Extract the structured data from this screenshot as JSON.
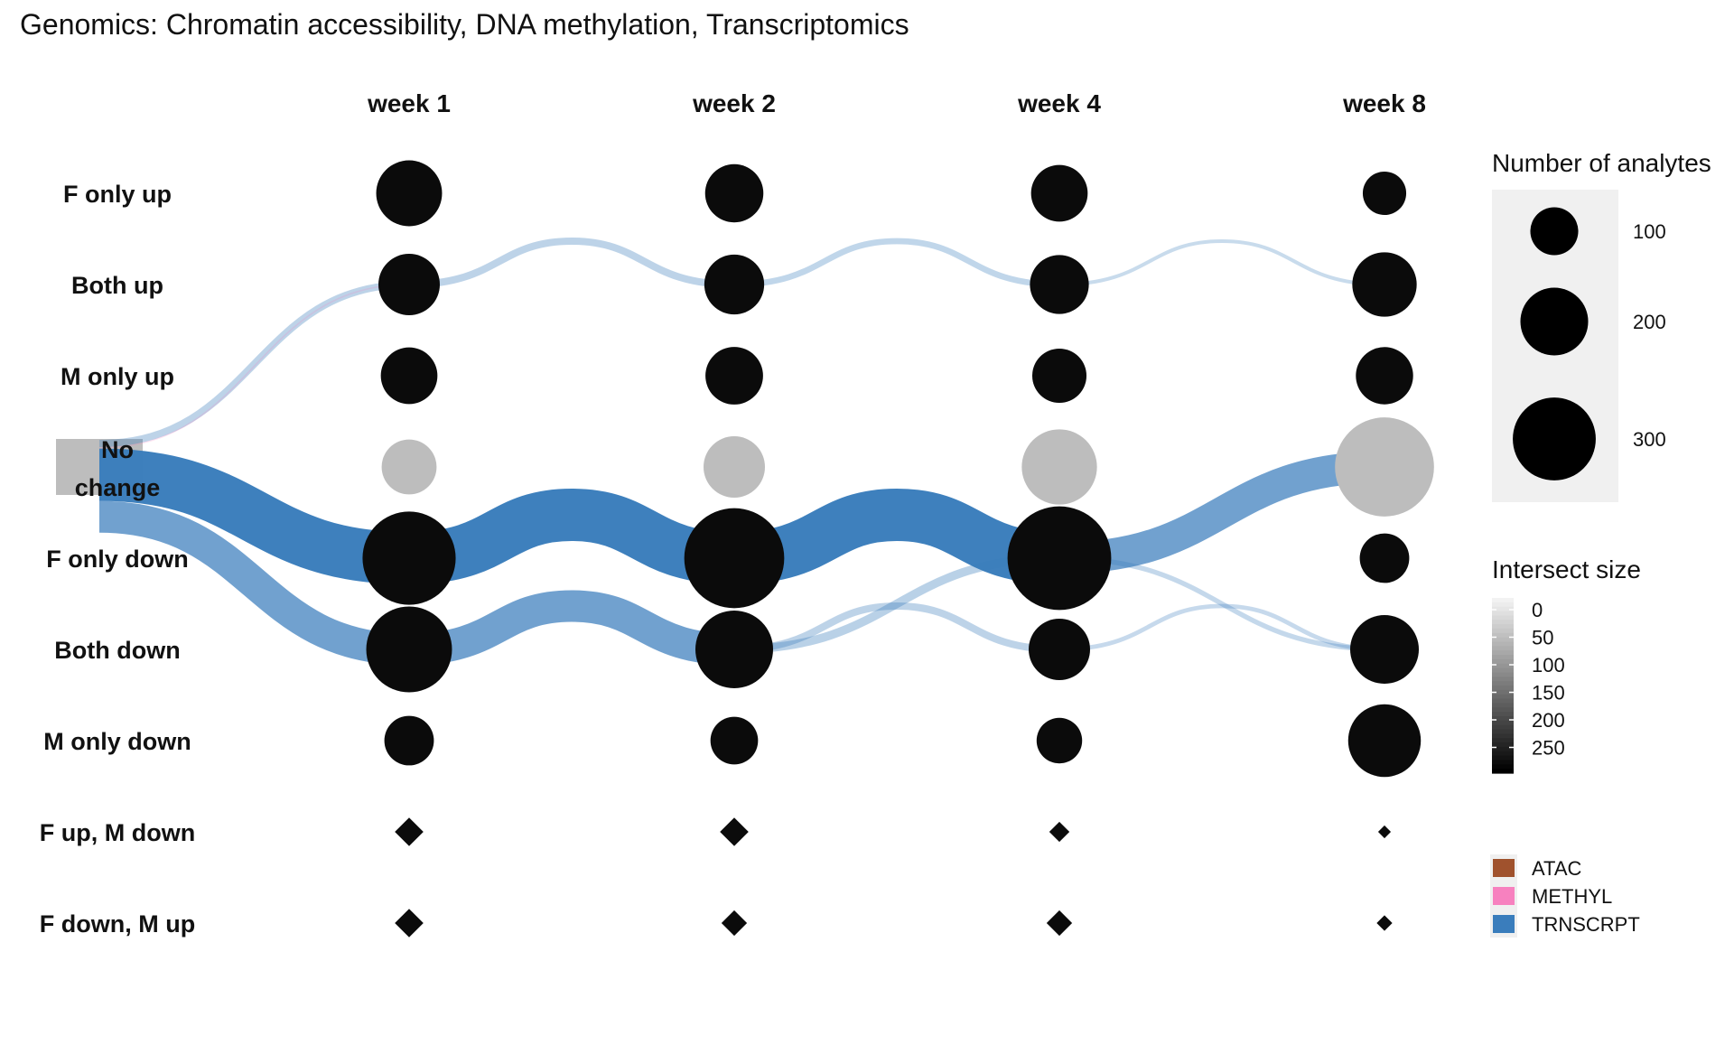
{
  "chart_data": {
    "type": "alluvial-dot",
    "title": "Genomics: Chromatin accessibility, DNA methylation, Transcriptomics",
    "timepoints": [
      "week 1",
      "week 2",
      "week 4",
      "week 8"
    ],
    "states": [
      "F only up",
      "Both up",
      "M only up",
      "No change",
      "F only down",
      "Both down",
      "M only down",
      "F up, M down",
      "F down, M up"
    ],
    "no_change_state": "No change",
    "diamond_states": [
      "F up, M down",
      "F down, M up"
    ],
    "node_sizes": {
      "F only up": [
        115,
        90,
        85,
        50
      ],
      "Both up": [
        100,
        95,
        92,
        110
      ],
      "M only up": [
        85,
        88,
        78,
        87
      ],
      "No change": [
        80,
        100,
        150,
        260
      ],
      "F only down": [
        230,
        265,
        285,
        65
      ],
      "Both down": [
        195,
        160,
        100,
        125
      ],
      "M only down": [
        65,
        60,
        55,
        140
      ],
      "F up, M down": [
        10,
        10,
        5,
        2
      ],
      "F down, M up": [
        10,
        8,
        8,
        3
      ]
    },
    "flows": [
      {
        "from_state": "No change",
        "to_state": "Both up",
        "from_time": 0,
        "to_time": 1,
        "value": 30,
        "modality": "TRNSCRPT"
      },
      {
        "from_state": "No change",
        "to_state": "Both up",
        "from_time": 0,
        "to_time": 1,
        "value": 1,
        "modality": "METHYL"
      },
      {
        "from_state": "No change",
        "to_state": "F only down",
        "from_time": 0,
        "to_time": 1,
        "value": 215,
        "modality": "TRNSCRPT"
      },
      {
        "from_state": "No change",
        "to_state": "Both down",
        "from_time": 0,
        "to_time": 1,
        "value": 130,
        "modality": "TRNSCRPT"
      },
      {
        "from_state": "Both up",
        "to_state": "Both up",
        "from_time": 1,
        "to_time": 2,
        "value": 30,
        "modality": "TRNSCRPT"
      },
      {
        "from_state": "Both up",
        "to_state": "Both up",
        "from_time": 2,
        "to_time": 3,
        "value": 25,
        "modality": "TRNSCRPT"
      },
      {
        "from_state": "Both up",
        "to_state": "Both up",
        "from_time": 3,
        "to_time": 4,
        "value": 15,
        "modality": "TRNSCRPT"
      },
      {
        "from_state": "F only down",
        "to_state": "F only down",
        "from_time": 1,
        "to_time": 2,
        "value": 215,
        "modality": "TRNSCRPT"
      },
      {
        "from_state": "F only down",
        "to_state": "F only down",
        "from_time": 2,
        "to_time": 3,
        "value": 215,
        "modality": "TRNSCRPT"
      },
      {
        "from_state": "F only down",
        "to_state": "No change",
        "from_time": 3,
        "to_time": 4,
        "value": 130,
        "modality": "TRNSCRPT"
      },
      {
        "from_state": "F only down",
        "to_state": "Both down",
        "from_time": 3,
        "to_time": 4,
        "value": 20,
        "modality": "TRNSCRPT"
      },
      {
        "from_state": "Both down",
        "to_state": "Both down",
        "from_time": 1,
        "to_time": 2,
        "value": 130,
        "modality": "TRNSCRPT"
      },
      {
        "from_state": "Both down",
        "to_state": "F only down",
        "from_time": 2,
        "to_time": 3,
        "value": 35,
        "modality": "TRNSCRPT"
      },
      {
        "from_state": "Both down",
        "to_state": "Both down",
        "from_time": 2,
        "to_time": 3,
        "value": 30,
        "modality": "TRNSCRPT"
      },
      {
        "from_state": "Both down",
        "to_state": "Both down",
        "from_time": 3,
        "to_time": 4,
        "value": 18,
        "modality": "TRNSCRPT"
      }
    ],
    "legend_size": {
      "title": "Number of analytes",
      "entries": [
        {
          "label": "100",
          "value": 100
        },
        {
          "label": "200",
          "value": 200
        },
        {
          "label": "300",
          "value": 300
        }
      ]
    },
    "legend_intersect": {
      "title": "Intersect size",
      "labels": [
        "0",
        "50",
        "100",
        "150",
        "200",
        "250"
      ]
    },
    "legend_modality": [
      {
        "label": "ATAC",
        "color": "#A0522D"
      },
      {
        "label": "METHYL",
        "color": "#F781BF"
      },
      {
        "label": "TRNSCRPT",
        "color": "#3A7DBC"
      }
    ],
    "colors": {
      "node": "#0b0b0b",
      "no_change_node": "#bdbdbd",
      "legend_panel": "#f0f0f0",
      "flow_TRNSCRPT": "#3A7DBC",
      "flow_METHYL": "#F781BF",
      "flow_ATAC": "#A0522D"
    }
  }
}
